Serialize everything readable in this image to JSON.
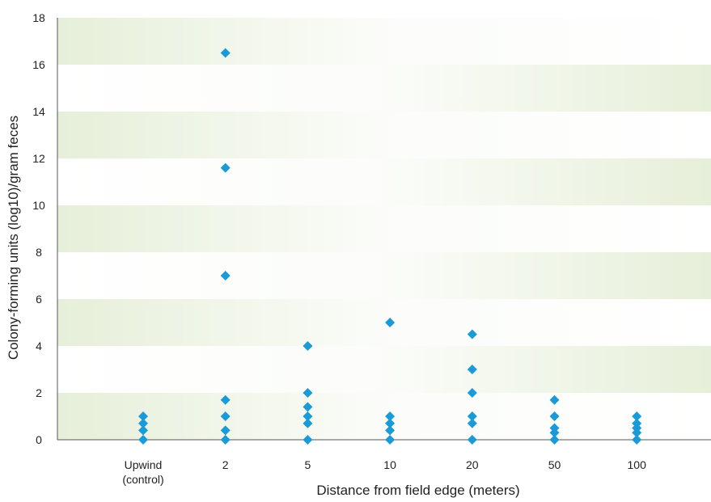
{
  "chart_data": {
    "type": "scatter",
    "title": "",
    "xlabel": "Distance from field edge (meters)",
    "ylabel": "Colony-forming units (log10)/gram feces",
    "ylim": [
      0,
      18
    ],
    "yticks": [
      0,
      2,
      4,
      6,
      8,
      10,
      12,
      14,
      16,
      18
    ],
    "grid": "alternating horizontal bands every 2 units",
    "categories": [
      {
        "line1": "Upwind",
        "line2": "(control)"
      },
      {
        "line1": "2",
        "line2": ""
      },
      {
        "line1": "5",
        "line2": ""
      },
      {
        "line1": "10",
        "line2": ""
      },
      {
        "line1": "20",
        "line2": ""
      },
      {
        "line1": "50",
        "line2": ""
      },
      {
        "line1": "100",
        "line2": ""
      }
    ],
    "series": [
      {
        "color": "#1a9ad6",
        "marker": "diamond",
        "points": [
          {
            "category": "Upwind",
            "y": 0
          },
          {
            "category": "Upwind",
            "y": 0.4
          },
          {
            "category": "Upwind",
            "y": 0.7
          },
          {
            "category": "Upwind",
            "y": 1.0
          },
          {
            "category": "2",
            "y": 0
          },
          {
            "category": "2",
            "y": 0.4
          },
          {
            "category": "2",
            "y": 1.0
          },
          {
            "category": "2",
            "y": 1.7
          },
          {
            "category": "2",
            "y": 7.0
          },
          {
            "category": "2",
            "y": 11.6
          },
          {
            "category": "2",
            "y": 16.5
          },
          {
            "category": "5",
            "y": 0
          },
          {
            "category": "5",
            "y": 0.7
          },
          {
            "category": "5",
            "y": 1.0
          },
          {
            "category": "5",
            "y": 1.4
          },
          {
            "category": "5",
            "y": 2.0
          },
          {
            "category": "5",
            "y": 4.0
          },
          {
            "category": "10",
            "y": 0
          },
          {
            "category": "10",
            "y": 0.4
          },
          {
            "category": "10",
            "y": 0.7
          },
          {
            "category": "10",
            "y": 1.0
          },
          {
            "category": "10",
            "y": 5.0
          },
          {
            "category": "20",
            "y": 0
          },
          {
            "category": "20",
            "y": 0.7
          },
          {
            "category": "20",
            "y": 1.0
          },
          {
            "category": "20",
            "y": 2.0
          },
          {
            "category": "20",
            "y": 3.0
          },
          {
            "category": "20",
            "y": 4.5
          },
          {
            "category": "50",
            "y": 0
          },
          {
            "category": "50",
            "y": 0.3
          },
          {
            "category": "50",
            "y": 0.5
          },
          {
            "category": "50",
            "y": 1.0
          },
          {
            "category": "50",
            "y": 1.7
          },
          {
            "category": "100",
            "y": 0
          },
          {
            "category": "100",
            "y": 0.3
          },
          {
            "category": "100",
            "y": 0.5
          },
          {
            "category": "100",
            "y": 0.7
          },
          {
            "category": "100",
            "y": 1.0
          }
        ]
      }
    ],
    "colors": {
      "band": "#e6efd9",
      "marker": "#1a9ad6",
      "axis": "#555555"
    }
  }
}
